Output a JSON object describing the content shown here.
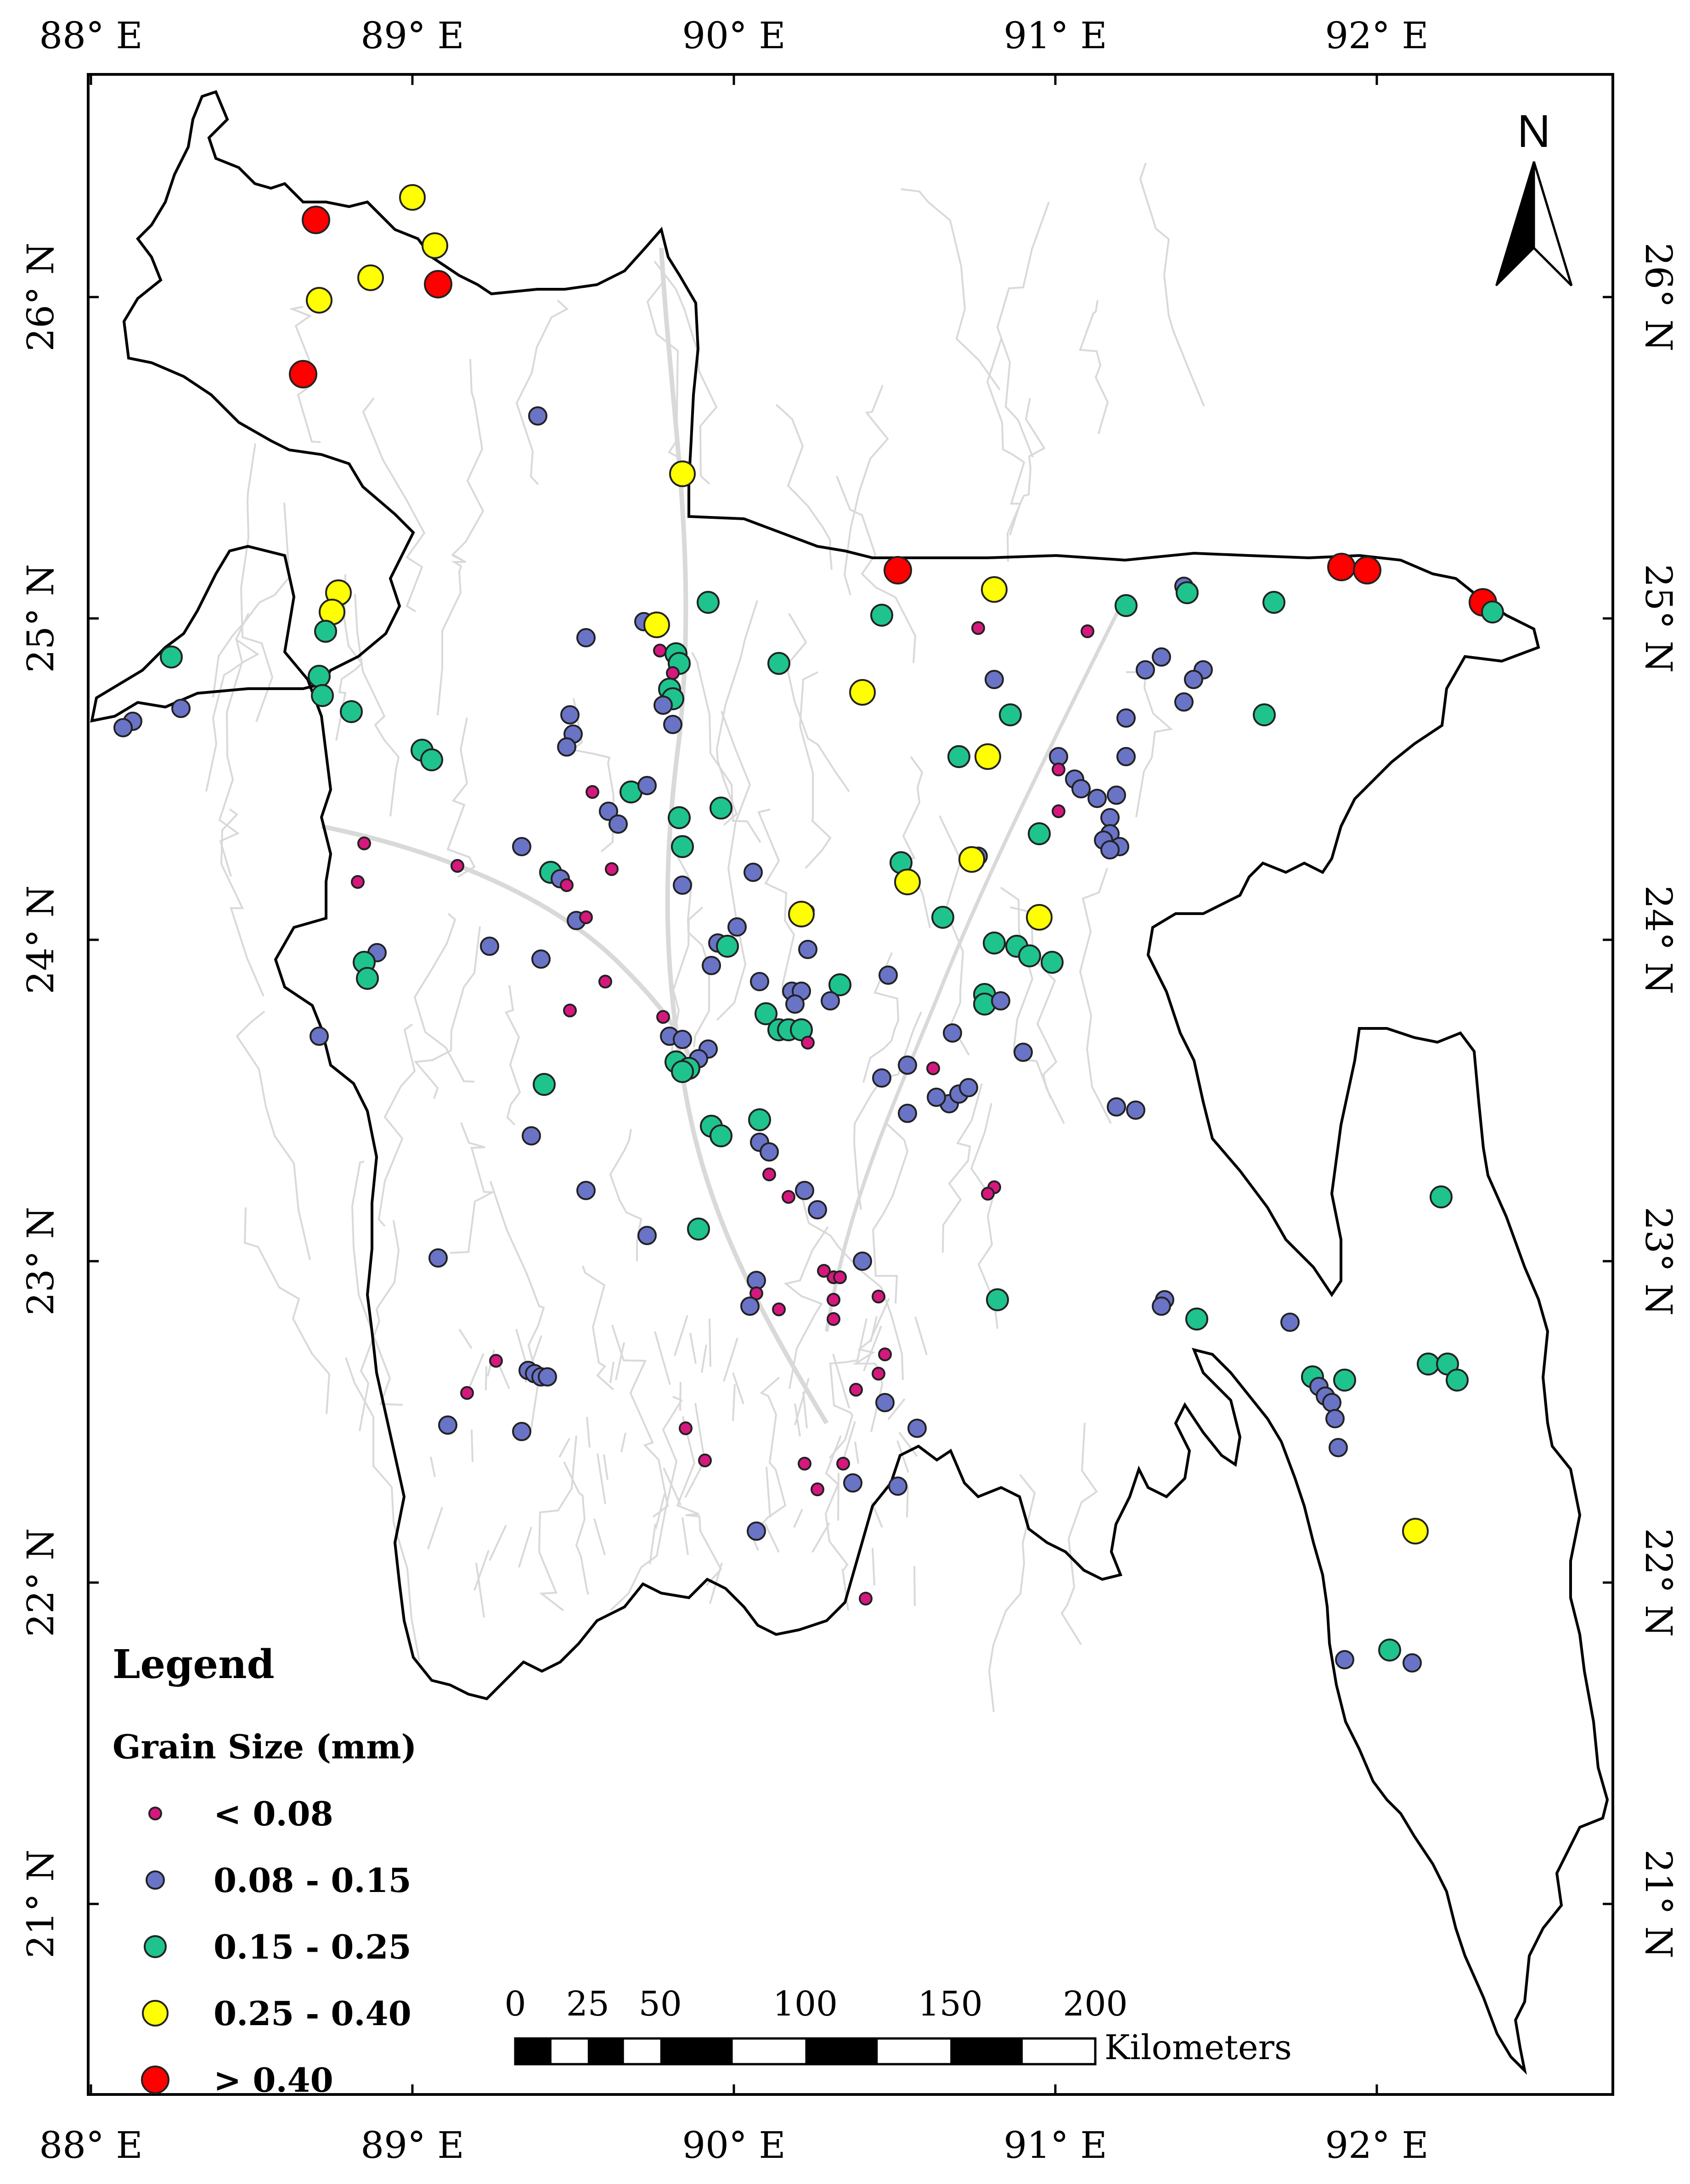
{
  "map": {
    "lon_ticks": [
      "88° E",
      "89° E",
      "90° E",
      "91° E",
      "92° E"
    ],
    "lat_ticks": [
      "26° N",
      "25° N",
      "24° N",
      "23° N",
      "22° N",
      "21° N"
    ],
    "north_arrow": {
      "label": "N",
      "icon": "north-arrow-icon"
    }
  },
  "legend": {
    "title": "Legend",
    "subtitle": "Grain Size (mm)",
    "classes": [
      {
        "id": "lt008",
        "label": "< 0.08",
        "color": "#d6187e"
      },
      {
        "id": "c008_015",
        "label": "0.08 - 0.15",
        "color": "#6a74c6"
      },
      {
        "id": "c015_025",
        "label": "0.15 - 0.25",
        "color": "#1fc38e"
      },
      {
        "id": "c025_040",
        "label": "0.25 - 0.40",
        "color": "#ffff00"
      },
      {
        "id": "gt040",
        "label": "> 0.40",
        "color": "#ff0000"
      }
    ]
  },
  "scale_bar": {
    "ticks": [
      "0",
      "25",
      "50",
      "100",
      "150",
      "200"
    ],
    "unit": "Kilometers"
  },
  "sites": [
    {
      "lon": 88.7,
      "lat": 26.24,
      "c": "gt040"
    },
    {
      "lon": 88.71,
      "lat": 25.99,
      "c": "c025_040"
    },
    {
      "lon": 88.87,
      "lat": 26.06,
      "c": "c025_040"
    },
    {
      "lon": 89.0,
      "lat": 26.31,
      "c": "c025_040"
    },
    {
      "lon": 89.07,
      "lat": 26.16,
      "c": "c025_040"
    },
    {
      "lon": 89.08,
      "lat": 26.04,
      "c": "gt040"
    },
    {
      "lon": 88.66,
      "lat": 25.76,
      "c": "gt040"
    },
    {
      "lon": 89.39,
      "lat": 25.63,
      "c": "c008_015"
    },
    {
      "lon": 89.84,
      "lat": 25.45,
      "c": "c025_040"
    },
    {
      "lon": 88.77,
      "lat": 25.08,
      "c": "c025_040"
    },
    {
      "lon": 88.75,
      "lat": 25.02,
      "c": "c025_040"
    },
    {
      "lon": 88.73,
      "lat": 24.96,
      "c": "c015_025"
    },
    {
      "lon": 88.71,
      "lat": 24.82,
      "c": "c015_025"
    },
    {
      "lon": 88.72,
      "lat": 24.76,
      "c": "c015_025"
    },
    {
      "lon": 88.81,
      "lat": 24.71,
      "c": "c015_025"
    },
    {
      "lon": 88.25,
      "lat": 24.88,
      "c": "c015_025"
    },
    {
      "lon": 88.13,
      "lat": 24.68,
      "c": "c008_015"
    },
    {
      "lon": 88.1,
      "lat": 24.66,
      "c": "c008_015"
    },
    {
      "lon": 88.28,
      "lat": 24.72,
      "c": "c008_015"
    },
    {
      "lon": 89.03,
      "lat": 24.59,
      "c": "c015_025"
    },
    {
      "lon": 89.06,
      "lat": 24.56,
      "c": "c015_025"
    },
    {
      "lon": 89.54,
      "lat": 24.94,
      "c": "c008_015"
    },
    {
      "lon": 89.72,
      "lat": 24.99,
      "c": "c008_015"
    },
    {
      "lon": 89.76,
      "lat": 24.98,
      "c": "c025_040"
    },
    {
      "lon": 89.92,
      "lat": 25.05,
      "c": "c015_025"
    },
    {
      "lon": 89.77,
      "lat": 24.9,
      "c": "lt008"
    },
    {
      "lon": 89.82,
      "lat": 24.89,
      "c": "c015_025"
    },
    {
      "lon": 89.83,
      "lat": 24.86,
      "c": "c015_025"
    },
    {
      "lon": 89.81,
      "lat": 24.83,
      "c": "lt008"
    },
    {
      "lon": 89.8,
      "lat": 24.78,
      "c": "c015_025"
    },
    {
      "lon": 89.81,
      "lat": 24.75,
      "c": "c015_025"
    },
    {
      "lon": 89.78,
      "lat": 24.73,
      "c": "c008_015"
    },
    {
      "lon": 89.81,
      "lat": 24.67,
      "c": "c008_015"
    },
    {
      "lon": 89.49,
      "lat": 24.7,
      "c": "c008_015"
    },
    {
      "lon": 89.5,
      "lat": 24.64,
      "c": "c008_015"
    },
    {
      "lon": 89.48,
      "lat": 24.6,
      "c": "c008_015"
    },
    {
      "lon": 89.56,
      "lat": 24.46,
      "c": "lt008"
    },
    {
      "lon": 89.68,
      "lat": 24.46,
      "c": "c015_025"
    },
    {
      "lon": 89.73,
      "lat": 24.48,
      "c": "c008_015"
    },
    {
      "lon": 89.61,
      "lat": 24.4,
      "c": "c008_015"
    },
    {
      "lon": 89.64,
      "lat": 24.36,
      "c": "c008_015"
    },
    {
      "lon": 89.83,
      "lat": 24.38,
      "c": "c015_025"
    },
    {
      "lon": 89.96,
      "lat": 24.41,
      "c": "c015_025"
    },
    {
      "lon": 89.84,
      "lat": 24.29,
      "c": "c015_025"
    },
    {
      "lon": 89.84,
      "lat": 24.17,
      "c": "c008_015"
    },
    {
      "lon": 89.34,
      "lat": 24.29,
      "c": "c008_015"
    },
    {
      "lon": 89.43,
      "lat": 24.21,
      "c": "c015_025"
    },
    {
      "lon": 89.46,
      "lat": 24.19,
      "c": "c008_015"
    },
    {
      "lon": 89.48,
      "lat": 24.17,
      "c": "lt008"
    },
    {
      "lon": 89.62,
      "lat": 24.22,
      "c": "lt008"
    },
    {
      "lon": 89.14,
      "lat": 24.23,
      "c": "lt008"
    },
    {
      "lon": 88.85,
      "lat": 24.3,
      "c": "lt008"
    },
    {
      "lon": 88.83,
      "lat": 24.18,
      "c": "lt008"
    },
    {
      "lon": 89.51,
      "lat": 24.06,
      "c": "c008_015"
    },
    {
      "lon": 89.54,
      "lat": 24.07,
      "c": "lt008"
    },
    {
      "lon": 89.24,
      "lat": 23.98,
      "c": "c008_015"
    },
    {
      "lon": 89.4,
      "lat": 23.94,
      "c": "c008_015"
    },
    {
      "lon": 89.6,
      "lat": 23.87,
      "c": "lt008"
    },
    {
      "lon": 89.49,
      "lat": 23.78,
      "c": "lt008"
    },
    {
      "lon": 88.89,
      "lat": 23.96,
      "c": "c008_015"
    },
    {
      "lon": 88.85,
      "lat": 23.93,
      "c": "c015_025"
    },
    {
      "lon": 88.86,
      "lat": 23.88,
      "c": "c015_025"
    },
    {
      "lon": 88.71,
      "lat": 23.7,
      "c": "c008_015"
    },
    {
      "lon": 90.06,
      "lat": 24.21,
      "c": "c008_015"
    },
    {
      "lon": 90.23,
      "lat": 24.09,
      "c": "lt008"
    },
    {
      "lon": 90.21,
      "lat": 24.08,
      "c": "c025_040"
    },
    {
      "lon": 90.01,
      "lat": 24.04,
      "c": "c008_015"
    },
    {
      "lon": 89.95,
      "lat": 23.99,
      "c": "c008_015"
    },
    {
      "lon": 89.98,
      "lat": 23.98,
      "c": "c015_025"
    },
    {
      "lon": 89.93,
      "lat": 23.92,
      "c": "c008_015"
    },
    {
      "lon": 90.23,
      "lat": 23.97,
      "c": "c008_015"
    },
    {
      "lon": 90.08,
      "lat": 23.87,
      "c": "c008_015"
    },
    {
      "lon": 90.18,
      "lat": 23.84,
      "c": "c008_015"
    },
    {
      "lon": 90.21,
      "lat": 23.84,
      "c": "c008_015"
    },
    {
      "lon": 90.19,
      "lat": 23.8,
      "c": "c008_015"
    },
    {
      "lon": 90.33,
      "lat": 23.86,
      "c": "c015_025"
    },
    {
      "lon": 90.3,
      "lat": 23.81,
      "c": "c008_015"
    },
    {
      "lon": 90.48,
      "lat": 23.89,
      "c": "c008_015"
    },
    {
      "lon": 90.1,
      "lat": 23.77,
      "c": "c015_025"
    },
    {
      "lon": 90.14,
      "lat": 23.72,
      "c": "c015_025"
    },
    {
      "lon": 90.17,
      "lat": 23.72,
      "c": "c015_025"
    },
    {
      "lon": 90.21,
      "lat": 23.72,
      "c": "c015_025"
    },
    {
      "lon": 90.23,
      "lat": 23.68,
      "c": "lt008"
    },
    {
      "lon": 89.78,
      "lat": 23.76,
      "c": "lt008"
    },
    {
      "lon": 89.8,
      "lat": 23.7,
      "c": "c008_015"
    },
    {
      "lon": 89.84,
      "lat": 23.69,
      "c": "c008_015"
    },
    {
      "lon": 89.92,
      "lat": 23.66,
      "c": "c008_015"
    },
    {
      "lon": 89.89,
      "lat": 23.63,
      "c": "c008_015"
    },
    {
      "lon": 89.82,
      "lat": 23.62,
      "c": "c015_025"
    },
    {
      "lon": 89.86,
      "lat": 23.6,
      "c": "c015_025"
    },
    {
      "lon": 89.84,
      "lat": 23.59,
      "c": "c015_025"
    },
    {
      "lon": 90.54,
      "lat": 23.61,
      "c": "c008_015"
    },
    {
      "lon": 90.62,
      "lat": 23.6,
      "c": "lt008"
    },
    {
      "lon": 90.46,
      "lat": 23.57,
      "c": "c008_015"
    },
    {
      "lon": 90.67,
      "lat": 23.49,
      "c": "c008_015"
    },
    {
      "lon": 90.7,
      "lat": 23.52,
      "c": "c008_015"
    },
    {
      "lon": 90.73,
      "lat": 23.54,
      "c": "c008_015"
    },
    {
      "lon": 90.63,
      "lat": 23.51,
      "c": "c008_015"
    },
    {
      "lon": 90.54,
      "lat": 23.46,
      "c": "c008_015"
    },
    {
      "lon": 89.41,
      "lat": 23.55,
      "c": "c015_025"
    },
    {
      "lon": 89.37,
      "lat": 23.39,
      "c": "c008_015"
    },
    {
      "lon": 89.93,
      "lat": 23.42,
      "c": "c015_025"
    },
    {
      "lon": 89.96,
      "lat": 23.39,
      "c": "c015_025"
    },
    {
      "lon": 90.08,
      "lat": 23.44,
      "c": "c015_025"
    },
    {
      "lon": 90.08,
      "lat": 23.37,
      "c": "c008_015"
    },
    {
      "lon": 90.11,
      "lat": 23.34,
      "c": "c008_015"
    },
    {
      "lon": 90.11,
      "lat": 23.27,
      "c": "lt008"
    },
    {
      "lon": 89.54,
      "lat": 23.22,
      "c": "c008_015"
    },
    {
      "lon": 90.22,
      "lat": 23.22,
      "c": "c008_015"
    },
    {
      "lon": 90.17,
      "lat": 23.2,
      "c": "lt008"
    },
    {
      "lon": 90.26,
      "lat": 23.16,
      "c": "c008_015"
    },
    {
      "lon": 89.73,
      "lat": 23.08,
      "c": "c008_015"
    },
    {
      "lon": 89.89,
      "lat": 23.1,
      "c": "c015_025"
    },
    {
      "lon": 89.08,
      "lat": 23.01,
      "c": "c008_015"
    },
    {
      "lon": 90.28,
      "lat": 22.97,
      "c": "lt008"
    },
    {
      "lon": 90.31,
      "lat": 22.95,
      "c": "lt008"
    },
    {
      "lon": 90.33,
      "lat": 22.95,
      "c": "lt008"
    },
    {
      "lon": 90.4,
      "lat": 23.0,
      "c": "c008_015"
    },
    {
      "lon": 90.07,
      "lat": 22.94,
      "c": "c008_015"
    },
    {
      "lon": 90.07,
      "lat": 22.9,
      "c": "lt008"
    },
    {
      "lon": 90.05,
      "lat": 22.86,
      "c": "c008_015"
    },
    {
      "lon": 90.14,
      "lat": 22.85,
      "c": "lt008"
    },
    {
      "lon": 90.31,
      "lat": 22.88,
      "c": "lt008"
    },
    {
      "lon": 90.31,
      "lat": 22.82,
      "c": "lt008"
    },
    {
      "lon": 90.45,
      "lat": 22.89,
      "c": "lt008"
    },
    {
      "lon": 89.26,
      "lat": 22.69,
      "c": "lt008"
    },
    {
      "lon": 89.36,
      "lat": 22.66,
      "c": "c008_015"
    },
    {
      "lon": 89.38,
      "lat": 22.65,
      "c": "c008_015"
    },
    {
      "lon": 89.4,
      "lat": 22.64,
      "c": "c008_015"
    },
    {
      "lon": 89.42,
      "lat": 22.64,
      "c": "c008_015"
    },
    {
      "lon": 89.17,
      "lat": 22.59,
      "c": "lt008"
    },
    {
      "lon": 89.11,
      "lat": 22.49,
      "c": "c008_015"
    },
    {
      "lon": 89.34,
      "lat": 22.47,
      "c": "c008_015"
    },
    {
      "lon": 90.47,
      "lat": 22.71,
      "c": "lt008"
    },
    {
      "lon": 90.45,
      "lat": 22.65,
      "c": "lt008"
    },
    {
      "lon": 90.38,
      "lat": 22.6,
      "c": "lt008"
    },
    {
      "lon": 90.47,
      "lat": 22.56,
      "c": "c008_015"
    },
    {
      "lon": 90.57,
      "lat": 22.48,
      "c": "c008_015"
    },
    {
      "lon": 89.85,
      "lat": 22.48,
      "c": "lt008"
    },
    {
      "lon": 89.91,
      "lat": 22.38,
      "c": "lt008"
    },
    {
      "lon": 90.22,
      "lat": 22.37,
      "c": "lt008"
    },
    {
      "lon": 90.34,
      "lat": 22.37,
      "c": "lt008"
    },
    {
      "lon": 90.37,
      "lat": 22.31,
      "c": "c008_015"
    },
    {
      "lon": 90.26,
      "lat": 22.29,
      "c": "lt008"
    },
    {
      "lon": 90.51,
      "lat": 22.3,
      "c": "c008_015"
    },
    {
      "lon": 90.07,
      "lat": 22.16,
      "c": "c008_015"
    },
    {
      "lon": 90.41,
      "lat": 21.95,
      "c": "lt008"
    },
    {
      "lon": 90.51,
      "lat": 25.15,
      "c": "gt040"
    },
    {
      "lon": 90.81,
      "lat": 25.09,
      "c": "c025_040"
    },
    {
      "lon": 90.46,
      "lat": 25.01,
      "c": "c015_025"
    },
    {
      "lon": 90.76,
      "lat": 24.97,
      "c": "lt008"
    },
    {
      "lon": 90.14,
      "lat": 24.86,
      "c": "c015_025"
    },
    {
      "lon": 90.4,
      "lat": 24.77,
      "c": "c025_040"
    },
    {
      "lon": 90.81,
      "lat": 24.81,
      "c": "c008_015"
    },
    {
      "lon": 90.86,
      "lat": 24.7,
      "c": "c015_025"
    },
    {
      "lon": 90.7,
      "lat": 24.57,
      "c": "c015_025"
    },
    {
      "lon": 90.79,
      "lat": 24.57,
      "c": "c025_040"
    },
    {
      "lon": 91.01,
      "lat": 24.57,
      "c": "c008_015"
    },
    {
      "lon": 91.01,
      "lat": 24.53,
      "c": "lt008"
    },
    {
      "lon": 91.06,
      "lat": 24.5,
      "c": "c008_015"
    },
    {
      "lon": 91.08,
      "lat": 24.47,
      "c": "c008_015"
    },
    {
      "lon": 91.13,
      "lat": 24.44,
      "c": "c008_015"
    },
    {
      "lon": 91.19,
      "lat": 24.45,
      "c": "c008_015"
    },
    {
      "lon": 91.01,
      "lat": 24.4,
      "c": "lt008"
    },
    {
      "lon": 91.17,
      "lat": 24.38,
      "c": "c008_015"
    },
    {
      "lon": 91.17,
      "lat": 24.33,
      "c": "c008_015"
    },
    {
      "lon": 91.15,
      "lat": 24.31,
      "c": "c008_015"
    },
    {
      "lon": 91.2,
      "lat": 24.29,
      "c": "c008_015"
    },
    {
      "lon": 91.17,
      "lat": 24.28,
      "c": "c008_015"
    },
    {
      "lon": 90.95,
      "lat": 24.34,
      "c": "lt008"
    },
    {
      "lon": 90.95,
      "lat": 24.33,
      "c": "c015_025"
    },
    {
      "lon": 90.52,
      "lat": 24.24,
      "c": "c015_025"
    },
    {
      "lon": 90.76,
      "lat": 24.26,
      "c": "c008_015"
    },
    {
      "lon": 90.74,
      "lat": 24.25,
      "c": "c025_040"
    },
    {
      "lon": 90.54,
      "lat": 24.18,
      "c": "c025_040"
    },
    {
      "lon": 90.65,
      "lat": 24.07,
      "c": "c015_025"
    },
    {
      "lon": 90.95,
      "lat": 24.07,
      "c": "c025_040"
    },
    {
      "lon": 90.81,
      "lat": 23.99,
      "c": "c015_025"
    },
    {
      "lon": 90.88,
      "lat": 23.98,
      "c": "c015_025"
    },
    {
      "lon": 90.92,
      "lat": 23.95,
      "c": "c015_025"
    },
    {
      "lon": 90.99,
      "lat": 23.93,
      "c": "c015_025"
    },
    {
      "lon": 90.78,
      "lat": 23.83,
      "c": "c015_025"
    },
    {
      "lon": 90.78,
      "lat": 23.8,
      "c": "c015_025"
    },
    {
      "lon": 90.83,
      "lat": 23.81,
      "c": "c008_015"
    },
    {
      "lon": 90.68,
      "lat": 23.71,
      "c": "c008_015"
    },
    {
      "lon": 90.9,
      "lat": 23.65,
      "c": "c008_015"
    },
    {
      "lon": 91.19,
      "lat": 23.48,
      "c": "c008_015"
    },
    {
      "lon": 91.25,
      "lat": 23.47,
      "c": "c008_015"
    },
    {
      "lon": 90.81,
      "lat": 23.23,
      "c": "lt008"
    },
    {
      "lon": 90.79,
      "lat": 23.21,
      "c": "lt008"
    },
    {
      "lon": 90.82,
      "lat": 22.88,
      "c": "c015_025"
    },
    {
      "lon": 91.22,
      "lat": 25.04,
      "c": "c015_025"
    },
    {
      "lon": 91.4,
      "lat": 25.1,
      "c": "c008_015"
    },
    {
      "lon": 91.41,
      "lat": 25.08,
      "c": "c015_025"
    },
    {
      "lon": 91.68,
      "lat": 25.05,
      "c": "c015_025"
    },
    {
      "lon": 91.1,
      "lat": 24.96,
      "c": "lt008"
    },
    {
      "lon": 91.33,
      "lat": 24.88,
      "c": "c008_015"
    },
    {
      "lon": 91.28,
      "lat": 24.84,
      "c": "c008_015"
    },
    {
      "lon": 91.46,
      "lat": 24.84,
      "c": "c008_015"
    },
    {
      "lon": 91.43,
      "lat": 24.81,
      "c": "c008_015"
    },
    {
      "lon": 91.4,
      "lat": 24.74,
      "c": "c008_015"
    },
    {
      "lon": 91.65,
      "lat": 24.7,
      "c": "c015_025"
    },
    {
      "lon": 91.22,
      "lat": 24.69,
      "c": "c008_015"
    },
    {
      "lon": 91.22,
      "lat": 24.57,
      "c": "c008_015"
    },
    {
      "lon": 91.89,
      "lat": 25.16,
      "c": "gt040"
    },
    {
      "lon": 91.97,
      "lat": 25.15,
      "c": "gt040"
    },
    {
      "lon": 92.33,
      "lat": 25.05,
      "c": "gt040"
    },
    {
      "lon": 92.36,
      "lat": 25.02,
      "c": "c015_025"
    },
    {
      "lon": 91.34,
      "lat": 22.88,
      "c": "c008_015"
    },
    {
      "lon": 91.33,
      "lat": 22.86,
      "c": "c008_015"
    },
    {
      "lon": 91.44,
      "lat": 22.82,
      "c": "c015_025"
    },
    {
      "lon": 91.73,
      "lat": 22.81,
      "c": "c008_015"
    },
    {
      "lon": 92.2,
      "lat": 23.2,
      "c": "c015_025"
    },
    {
      "lon": 91.8,
      "lat": 22.64,
      "c": "c015_025"
    },
    {
      "lon": 91.82,
      "lat": 22.61,
      "c": "c008_015"
    },
    {
      "lon": 91.84,
      "lat": 22.58,
      "c": "c008_015"
    },
    {
      "lon": 91.86,
      "lat": 22.56,
      "c": "c008_015"
    },
    {
      "lon": 91.87,
      "lat": 22.51,
      "c": "c008_015"
    },
    {
      "lon": 91.88,
      "lat": 22.42,
      "c": "c008_015"
    },
    {
      "lon": 91.9,
      "lat": 22.63,
      "c": "c015_025"
    },
    {
      "lon": 92.16,
      "lat": 22.68,
      "c": "c015_025"
    },
    {
      "lon": 92.22,
      "lat": 22.68,
      "c": "c015_025"
    },
    {
      "lon": 92.25,
      "lat": 22.63,
      "c": "c015_025"
    },
    {
      "lon": 92.12,
      "lat": 22.16,
      "c": "c025_040"
    },
    {
      "lon": 92.04,
      "lat": 21.79,
      "c": "c015_025"
    },
    {
      "lon": 91.9,
      "lat": 21.76,
      "c": "c008_015"
    },
    {
      "lon": 92.11,
      "lat": 21.75,
      "c": "c008_015"
    }
  ]
}
